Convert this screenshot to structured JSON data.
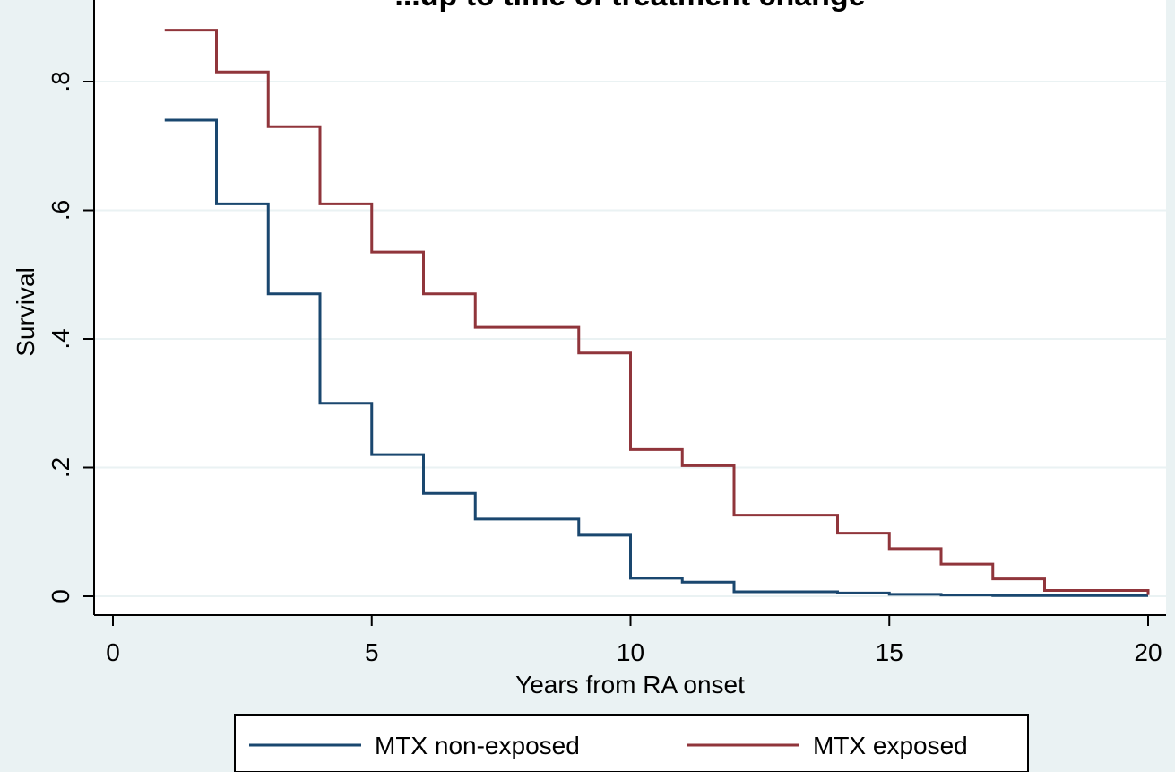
{
  "chart_data": {
    "type": "line",
    "title": "...up to time of treatment change",
    "xlabel": "Years from RA onset",
    "ylabel": "Survival",
    "xlim": [
      0,
      20
    ],
    "ylim": [
      0,
      0.9
    ],
    "x_ticks": [
      0,
      5,
      10,
      15,
      20
    ],
    "x_tick_labels": [
      "0",
      "5",
      "10",
      "15",
      "20"
    ],
    "y_ticks": [
      0,
      0.2,
      0.4,
      0.6,
      0.8
    ],
    "y_tick_labels": [
      "0",
      ".2",
      ".4",
      ".6",
      ".8"
    ],
    "grid": true,
    "legend_placement": "bottom",
    "step": true,
    "series": [
      {
        "name": "MTX non-exposed",
        "color": "#1a476f",
        "x": [
          1,
          2,
          3,
          4,
          5,
          6,
          7,
          9,
          10,
          11,
          12,
          14,
          15,
          16,
          17,
          20
        ],
        "y": [
          0.74,
          0.61,
          0.47,
          0.3,
          0.22,
          0.16,
          0.12,
          0.095,
          0.028,
          0.022,
          0.007,
          0.005,
          0.003,
          0.002,
          0.001,
          0.001
        ]
      },
      {
        "name": "MTX exposed",
        "color": "#90353b",
        "x": [
          1,
          2,
          3,
          4,
          5,
          6,
          7,
          9,
          10,
          11,
          12,
          14,
          15,
          16,
          17,
          18,
          20
        ],
        "y": [
          0.88,
          0.815,
          0.73,
          0.61,
          0.535,
          0.47,
          0.418,
          0.378,
          0.228,
          0.203,
          0.126,
          0.098,
          0.074,
          0.05,
          0.027,
          0.009,
          0.002
        ]
      }
    ]
  }
}
